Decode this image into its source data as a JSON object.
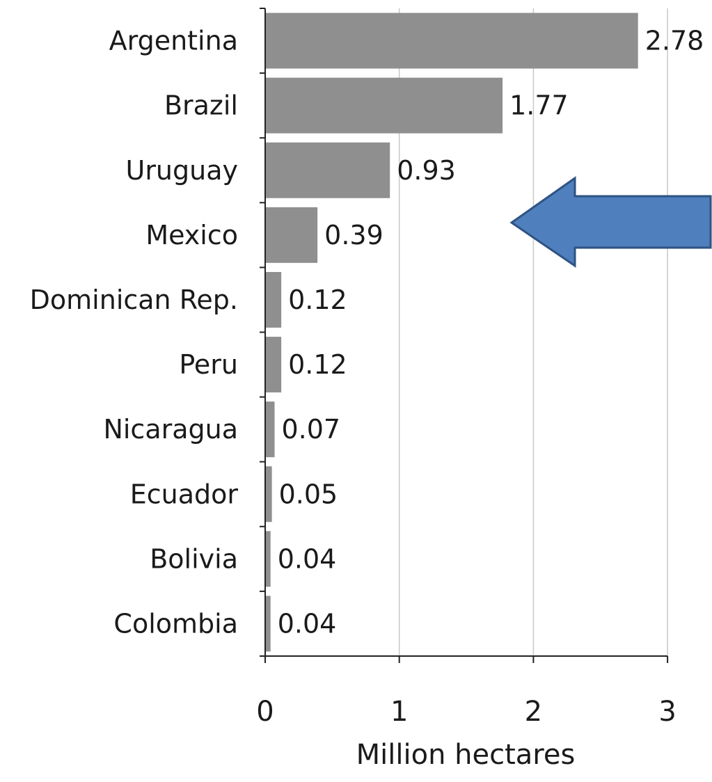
{
  "chart_data": {
    "type": "bar",
    "orientation": "horizontal",
    "categories": [
      "Argentina",
      "Brazil",
      "Uruguay",
      "Mexico",
      "Dominican Rep.",
      "Peru",
      "Nicaragua",
      "Ecuador",
      "Bolivia",
      "Colombia"
    ],
    "values": [
      2.78,
      1.77,
      0.93,
      0.39,
      0.12,
      0.12,
      0.07,
      0.05,
      0.04,
      0.04
    ],
    "value_labels": [
      "2.78",
      "1.77",
      "0.93",
      "0.39",
      "0.12",
      "0.12",
      "0.07",
      "0.05",
      "0.04",
      "0.04"
    ],
    "xlim": [
      0,
      3
    ],
    "xticks": [
      0,
      1,
      2,
      3
    ],
    "xtick_labels": [
      "0",
      "1",
      "2",
      "3"
    ],
    "xlabel": "Million hectares",
    "grid": "vertical",
    "bar_color": "#8f8f8f",
    "grid_color": "#c8c8c8",
    "annotation": {
      "type": "arrow",
      "direction": "left",
      "points_to": "Mexico",
      "fill": "#4f7fbd",
      "stroke": "#2e5383"
    }
  }
}
